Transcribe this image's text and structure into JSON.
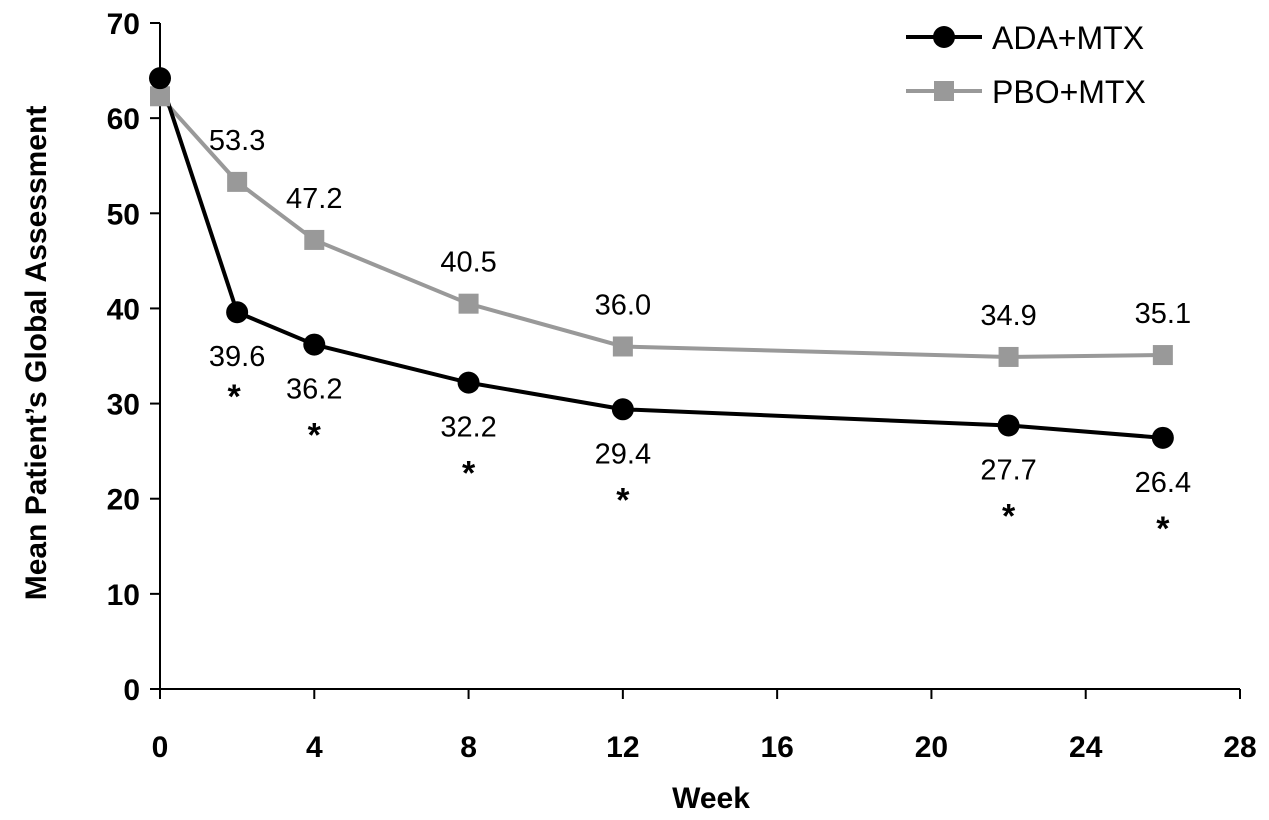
{
  "chart_data": {
    "type": "line",
    "title": "",
    "xlabel": "Week",
    "ylabel": "Mean Patient’s Global Assessment",
    "xlim": [
      0,
      28
    ],
    "ylim": [
      0,
      70
    ],
    "x_ticks": [
      0,
      4,
      8,
      12,
      16,
      20,
      24,
      28
    ],
    "y_ticks": [
      0,
      10,
      20,
      30,
      40,
      50,
      60,
      70
    ],
    "grid": false,
    "legend_position": "top-right",
    "series": [
      {
        "name": "ADA+MTX",
        "color": "#000000",
        "marker": "circle",
        "x": [
          0,
          2,
          4,
          8,
          12,
          22,
          26
        ],
        "y": [
          64.2,
          39.6,
          36.2,
          32.2,
          29.4,
          27.7,
          26.4
        ],
        "labels": [
          "",
          "39.6",
          "36.2",
          "32.2",
          "29.4",
          "27.7",
          "26.4"
        ],
        "significance": [
          "",
          "*",
          "*",
          "*",
          "*",
          "*",
          "*"
        ]
      },
      {
        "name": "PBO+MTX",
        "color": "#999999",
        "marker": "square",
        "x": [
          0,
          2,
          4,
          8,
          12,
          22,
          26
        ],
        "y": [
          62.3,
          53.3,
          47.2,
          40.5,
          36.0,
          34.9,
          35.1
        ],
        "labels": [
          "",
          "53.3",
          "47.2",
          "40.5",
          "36.0",
          "34.9",
          "35.1"
        ]
      }
    ]
  }
}
